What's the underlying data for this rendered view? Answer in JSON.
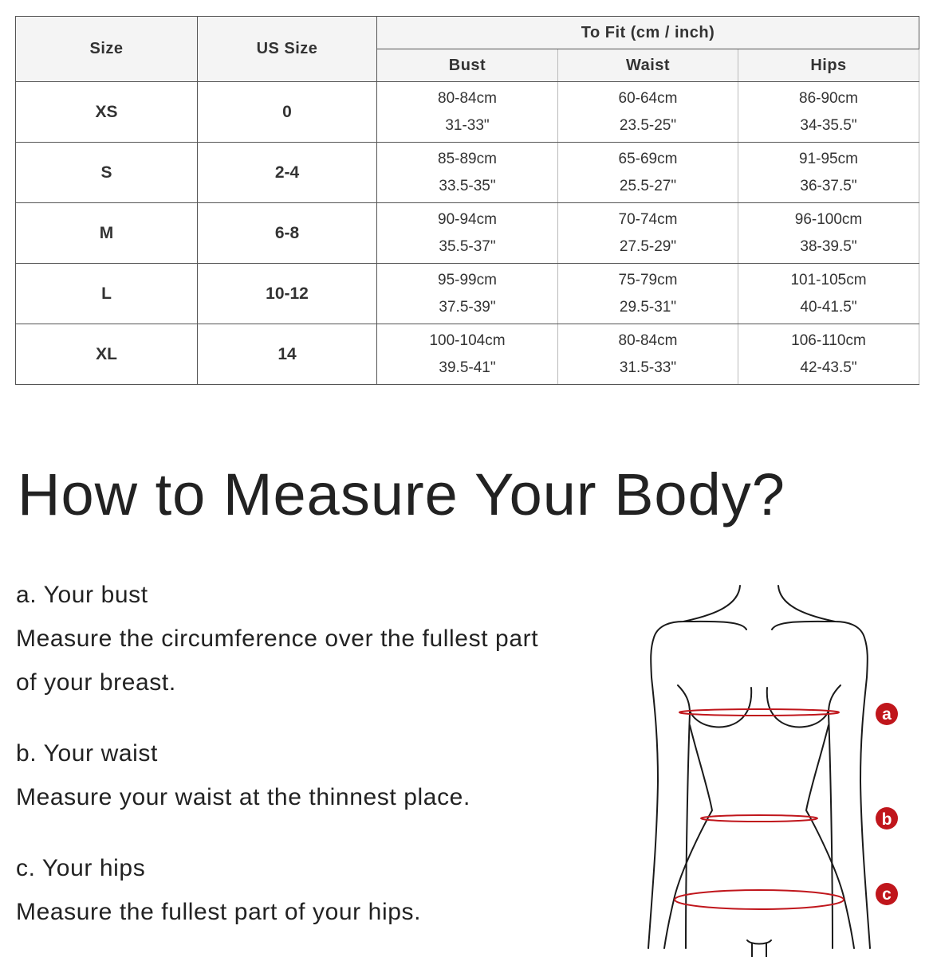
{
  "table": {
    "headers": {
      "size": "Size",
      "us_size": "US Size",
      "to_fit": "To Fit (cm / inch)",
      "bust": "Bust",
      "waist": "Waist",
      "hips": "Hips"
    },
    "rows": [
      {
        "size": "XS",
        "us": "0",
        "bust_cm": "80-84cm",
        "bust_in": "31-33\"",
        "waist_cm": "60-64cm",
        "waist_in": "23.5-25\"",
        "hips_cm": "86-90cm",
        "hips_in": "34-35.5\""
      },
      {
        "size": "S",
        "us": "2-4",
        "bust_cm": "85-89cm",
        "bust_in": "33.5-35\"",
        "waist_cm": "65-69cm",
        "waist_in": "25.5-27\"",
        "hips_cm": "91-95cm",
        "hips_in": "36-37.5\""
      },
      {
        "size": "M",
        "us": "6-8",
        "bust_cm": "90-94cm",
        "bust_in": "35.5-37\"",
        "waist_cm": "70-74cm",
        "waist_in": "27.5-29\"",
        "hips_cm": "96-100cm",
        "hips_in": "38-39.5\""
      },
      {
        "size": "L",
        "us": "10-12",
        "bust_cm": "95-99cm",
        "bust_in": "37.5-39\"",
        "waist_cm": "75-79cm",
        "waist_in": "29.5-31\"",
        "hips_cm": "101-105cm",
        "hips_in": "40-41.5\""
      },
      {
        "size": "XL",
        "us": "14",
        "bust_cm": "100-104cm",
        "bust_in": "39.5-41\"",
        "waist_cm": "80-84cm",
        "waist_in": "31.5-33\"",
        "hips_cm": "106-110cm",
        "hips_in": "42-43.5\""
      }
    ]
  },
  "guide": {
    "title": "How to Measure Your Body?",
    "items": [
      {
        "label": "a. Your bust",
        "text1": "Measure the circumference over the fullest part",
        "text2": "of your breast."
      },
      {
        "label": "b. Your waist",
        "text1": "Measure your waist at the thinnest place."
      },
      {
        "label": "c. Your hips",
        "text1": "Measure the fullest part of your hips."
      }
    ]
  },
  "figure": {
    "markers": [
      "a",
      "b",
      "c"
    ],
    "accent_color": "#c0161c",
    "line_color": "#1a1a1a"
  }
}
